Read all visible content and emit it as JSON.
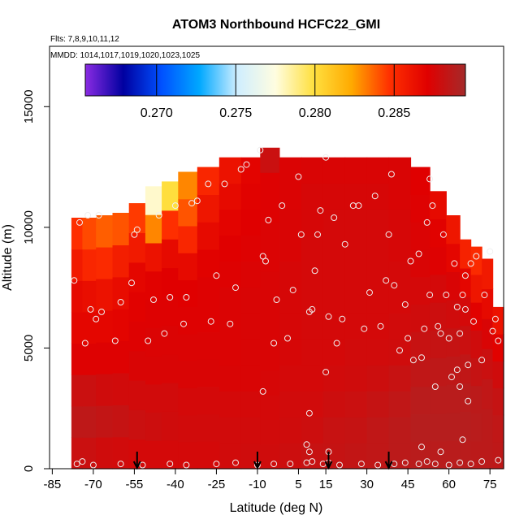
{
  "chart_data": {
    "type": "heatmap",
    "title": "ATOM3 Northbound HCFC22_GMI",
    "flights_label": "Flts: 7,8,9,10,11,12",
    "dates_label": "MMDD: 1014,1017,1019,1020,1023,1025",
    "xlabel": "Latitude (deg N)",
    "ylabel": "Altitude (m)",
    "xlim": [
      -86,
      80
    ],
    "ylim": [
      0,
      17500
    ],
    "x_ticks": [
      -85,
      -70,
      -55,
      -40,
      -25,
      -10,
      5,
      15,
      30,
      45,
      60,
      75
    ],
    "x_tick_labels": [
      "-85",
      "-70",
      "-55",
      "-40",
      "-25",
      "-10",
      "5",
      "15",
      "30",
      "45",
      "60",
      "75"
    ],
    "y_ticks": [
      0,
      5000,
      10000,
      15000
    ],
    "y_tick_labels": [
      "0",
      "5000",
      "10000",
      "15000"
    ],
    "colorbar": {
      "range": [
        0.2655,
        0.2895
      ],
      "ticks": [
        0.27,
        0.275,
        0.28,
        0.285
      ],
      "tick_labels": [
        "0.270",
        "0.275",
        "0.280",
        "0.285"
      ],
      "colors": [
        "#8a2be2",
        "#0000a0",
        "#0050ff",
        "#00a8ff",
        "#cfeeff",
        "#fffde0",
        "#ffe040",
        "#ffaa00",
        "#ff3000",
        "#e00000",
        "#a52a2a"
      ]
    },
    "arrows_latitude": [
      -54,
      -10,
      16,
      38
    ],
    "field_columns": [
      {
        "lat": -76,
        "top": 10400,
        "values": [
          0.288,
          0.2885,
          0.288,
          0.2872,
          0.2868,
          0.2866,
          0.2858,
          0.2848
        ]
      },
      {
        "lat": -72,
        "top": 10400,
        "values": [
          0.288,
          0.2885,
          0.288,
          0.2872,
          0.2868,
          0.2864,
          0.2852,
          0.2842
        ]
      },
      {
        "lat": -66,
        "top": 10500,
        "values": [
          0.2878,
          0.2883,
          0.2878,
          0.2872,
          0.2868,
          0.2862,
          0.285,
          0.2838
        ]
      },
      {
        "lat": -60,
        "top": 10600,
        "values": [
          0.2877,
          0.2882,
          0.2877,
          0.2872,
          0.2869,
          0.2865,
          0.2856,
          0.284
        ]
      },
      {
        "lat": -54,
        "top": 11000,
        "values": [
          0.2876,
          0.288,
          0.2877,
          0.2874,
          0.2872,
          0.287,
          0.2868,
          0.2858,
          0.2845
        ]
      },
      {
        "lat": -48,
        "top": 11700,
        "values": [
          0.2876,
          0.2879,
          0.2877,
          0.2874,
          0.2873,
          0.2872,
          0.287,
          0.2862,
          0.283,
          0.2778
        ]
      },
      {
        "lat": -42,
        "top": 11900,
        "values": [
          0.2876,
          0.2878,
          0.2877,
          0.2874,
          0.2873,
          0.2872,
          0.2871,
          0.2866,
          0.2848,
          0.28
        ]
      },
      {
        "lat": -36,
        "top": 12300,
        "values": [
          0.2876,
          0.2877,
          0.2876,
          0.2874,
          0.2873,
          0.2872,
          0.2871,
          0.2866,
          0.2852,
          0.284,
          0.283
        ]
      },
      {
        "lat": -28,
        "top": 12500,
        "values": [
          0.2876,
          0.2877,
          0.2876,
          0.2874,
          0.2873,
          0.2872,
          0.2872,
          0.287,
          0.2866,
          0.286,
          0.2852
        ]
      },
      {
        "lat": -20,
        "top": 12900,
        "values": [
          0.2877,
          0.2877,
          0.2876,
          0.2874,
          0.2873,
          0.2873,
          0.2873,
          0.2872,
          0.2871,
          0.2869,
          0.2866,
          0.2862
        ]
      },
      {
        "lat": -12,
        "top": 12900,
        "values": [
          0.2878,
          0.2877,
          0.2876,
          0.2874,
          0.2874,
          0.2874,
          0.2874,
          0.2873,
          0.2872,
          0.2871,
          0.287,
          0.2869
        ]
      },
      {
        "lat": -6,
        "top": 13300,
        "values": [
          0.2878,
          0.2877,
          0.2876,
          0.2875,
          0.2874,
          0.2874,
          0.2874,
          0.2874,
          0.2873,
          0.2873,
          0.2872,
          0.2872,
          0.288
        ]
      },
      {
        "lat": 2,
        "top": 12900,
        "values": [
          0.2879,
          0.2878,
          0.2877,
          0.2876,
          0.2875,
          0.2875,
          0.2875,
          0.2875,
          0.2874,
          0.2874,
          0.2873,
          0.2873
        ]
      },
      {
        "lat": 10,
        "top": 12900,
        "values": [
          0.2881,
          0.2879,
          0.2877,
          0.2876,
          0.2876,
          0.2876,
          0.2876,
          0.2876,
          0.2876,
          0.2875,
          0.2875,
          0.2874
        ]
      },
      {
        "lat": 18,
        "top": 12900,
        "values": [
          0.2882,
          0.2881,
          0.2879,
          0.2877,
          0.2876,
          0.2876,
          0.2876,
          0.2876,
          0.2876,
          0.2876,
          0.2875,
          0.2874
        ]
      },
      {
        "lat": 26,
        "top": 12900,
        "values": [
          0.2883,
          0.2882,
          0.288,
          0.2878,
          0.2877,
          0.2876,
          0.2876,
          0.2876,
          0.2876,
          0.2876,
          0.2875,
          0.2874
        ]
      },
      {
        "lat": 34,
        "top": 12900,
        "values": [
          0.2884,
          0.2884,
          0.2882,
          0.2879,
          0.2877,
          0.2876,
          0.2876,
          0.2876,
          0.2876,
          0.2876,
          0.2875,
          0.2874
        ]
      },
      {
        "lat": 42,
        "top": 12900,
        "values": [
          0.2886,
          0.2886,
          0.2884,
          0.2881,
          0.2878,
          0.2877,
          0.2876,
          0.2876,
          0.2875,
          0.2875,
          0.2874,
          0.2874
        ]
      },
      {
        "lat": 50,
        "top": 12500,
        "values": [
          0.2887,
          0.2888,
          0.2887,
          0.2884,
          0.2881,
          0.2878,
          0.2876,
          0.2874,
          0.2873,
          0.2872,
          0.2871
        ]
      },
      {
        "lat": 56,
        "top": 11500,
        "values": [
          0.2887,
          0.2888,
          0.2887,
          0.2885,
          0.2882,
          0.2879,
          0.2876,
          0.2872,
          0.287,
          0.2866
        ]
      },
      {
        "lat": 62,
        "top": 10500,
        "values": [
          0.2887,
          0.2888,
          0.2887,
          0.2885,
          0.2882,
          0.2878,
          0.2874,
          0.2868,
          0.286
        ]
      },
      {
        "lat": 66,
        "top": 9500,
        "values": [
          0.2887,
          0.2888,
          0.2887,
          0.2884,
          0.288,
          0.2876,
          0.2868,
          0.2854
        ]
      },
      {
        "lat": 70,
        "top": 9200,
        "values": [
          0.2886,
          0.2887,
          0.2886,
          0.2882,
          0.2878,
          0.287,
          0.286,
          0.285
        ]
      },
      {
        "lat": 74,
        "top": 8700,
        "values": [
          0.2886,
          0.2886,
          0.2884,
          0.288,
          0.2874,
          0.2866,
          0.2858
        ]
      },
      {
        "lat": 78,
        "top": 6700,
        "values": [
          0.2885,
          0.2884,
          0.2882,
          0.2878,
          0.287,
          0.2862
        ]
      }
    ],
    "observations": [
      {
        "lat": -77,
        "alt": 7800
      },
      {
        "lat": -75,
        "alt": 10200
      },
      {
        "lat": -73,
        "alt": 5200
      },
      {
        "lat": -72,
        "alt": 10500
      },
      {
        "lat": -71,
        "alt": 6600
      },
      {
        "lat": -69,
        "alt": 6200
      },
      {
        "lat": -68,
        "alt": 10500
      },
      {
        "lat": -67,
        "alt": 6500
      },
      {
        "lat": -62,
        "alt": 5300
      },
      {
        "lat": -60,
        "alt": 6900
      },
      {
        "lat": -56,
        "alt": 7700
      },
      {
        "lat": -55,
        "alt": 9700
      },
      {
        "lat": -54,
        "alt": 9900
      },
      {
        "lat": -50,
        "alt": 5300
      },
      {
        "lat": -48,
        "alt": 7000
      },
      {
        "lat": -46,
        "alt": 10500
      },
      {
        "lat": -44,
        "alt": 5600
      },
      {
        "lat": -42,
        "alt": 7100
      },
      {
        "lat": -40,
        "alt": 10900
      },
      {
        "lat": -37,
        "alt": 6000
      },
      {
        "lat": -36,
        "alt": 7100
      },
      {
        "lat": -34,
        "alt": 11000
      },
      {
        "lat": -32,
        "alt": 11100
      },
      {
        "lat": -28,
        "alt": 11800
      },
      {
        "lat": -27,
        "alt": 6100
      },
      {
        "lat": -25,
        "alt": 8000
      },
      {
        "lat": -22,
        "alt": 11800
      },
      {
        "lat": -20,
        "alt": 6000
      },
      {
        "lat": -18,
        "alt": 7500
      },
      {
        "lat": -16,
        "alt": 12400
      },
      {
        "lat": -14,
        "alt": 12600
      },
      {
        "lat": -9,
        "alt": 13200
      },
      {
        "lat": -8,
        "alt": 8800
      },
      {
        "lat": -7,
        "alt": 8600
      },
      {
        "lat": -6,
        "alt": 10300
      },
      {
        "lat": -4,
        "alt": 5200
      },
      {
        "lat": -3,
        "alt": 7000
      },
      {
        "lat": -1,
        "alt": 10900
      },
      {
        "lat": 1,
        "alt": 5400
      },
      {
        "lat": 3,
        "alt": 7400
      },
      {
        "lat": 5,
        "alt": 12100
      },
      {
        "lat": 6,
        "alt": 9700
      },
      {
        "lat": 9,
        "alt": 6500
      },
      {
        "lat": 10,
        "alt": 6600
      },
      {
        "lat": 11,
        "alt": 8200
      },
      {
        "lat": 12,
        "alt": 9700
      },
      {
        "lat": 13,
        "alt": 10700
      },
      {
        "lat": 15,
        "alt": 12900
      },
      {
        "lat": 16,
        "alt": 6300
      },
      {
        "lat": 15,
        "alt": 4000
      },
      {
        "lat": 18,
        "alt": 10400
      },
      {
        "lat": 19,
        "alt": 5200
      },
      {
        "lat": 21,
        "alt": 6200
      },
      {
        "lat": 22,
        "alt": 9300
      },
      {
        "lat": 25,
        "alt": 10900
      },
      {
        "lat": 27,
        "alt": 10900
      },
      {
        "lat": 29,
        "alt": 5800
      },
      {
        "lat": 31,
        "alt": 7300
      },
      {
        "lat": 33,
        "alt": 11300
      },
      {
        "lat": 35,
        "alt": 5900
      },
      {
        "lat": 37,
        "alt": 7800
      },
      {
        "lat": 38,
        "alt": 9700
      },
      {
        "lat": 39,
        "alt": 12200
      },
      {
        "lat": 40,
        "alt": 7600
      },
      {
        "lat": 42,
        "alt": 4900
      },
      {
        "lat": 44,
        "alt": 6800
      },
      {
        "lat": 45,
        "alt": 5400
      },
      {
        "lat": 46,
        "alt": 8600
      },
      {
        "lat": 47,
        "alt": 4500
      },
      {
        "lat": 49,
        "alt": 8900
      },
      {
        "lat": 50,
        "alt": 4600
      },
      {
        "lat": 51,
        "alt": 5800
      },
      {
        "lat": 52,
        "alt": 10200
      },
      {
        "lat": 53,
        "alt": 12000
      },
      {
        "lat": 53,
        "alt": 7200
      },
      {
        "lat": 54,
        "alt": 10900
      },
      {
        "lat": 55,
        "alt": 3400
      },
      {
        "lat": 56,
        "alt": 5900
      },
      {
        "lat": 57,
        "alt": 5600
      },
      {
        "lat": 58,
        "alt": 9700
      },
      {
        "lat": 59,
        "alt": 7200
      },
      {
        "lat": 60,
        "alt": 5400
      },
      {
        "lat": 61,
        "alt": 3800
      },
      {
        "lat": 62,
        "alt": 8500
      },
      {
        "lat": 63,
        "alt": 6700
      },
      {
        "lat": 63,
        "alt": 4100
      },
      {
        "lat": 64,
        "alt": 3400
      },
      {
        "lat": 64,
        "alt": 5600
      },
      {
        "lat": 65,
        "alt": 7200
      },
      {
        "lat": 66,
        "alt": 8000
      },
      {
        "lat": 66,
        "alt": 6600
      },
      {
        "lat": 67,
        "alt": 4300
      },
      {
        "lat": 67,
        "alt": 2800
      },
      {
        "lat": 68,
        "alt": 8500
      },
      {
        "lat": 69,
        "alt": 6100
      },
      {
        "lat": 70,
        "alt": 8800
      },
      {
        "lat": 72,
        "alt": 4500
      },
      {
        "lat": 73,
        "alt": 7200
      },
      {
        "lat": 75,
        "alt": 9000
      },
      {
        "lat": 76,
        "alt": 5700
      },
      {
        "lat": 77,
        "alt": 6200
      },
      {
        "lat": 78,
        "alt": 5300
      },
      {
        "lat": -8,
        "alt": 3200
      },
      {
        "lat": 9,
        "alt": 2300
      },
      {
        "lat": 65,
        "alt": 1200
      },
      {
        "lat": 8,
        "alt": 1000
      },
      {
        "lat": 16,
        "alt": 700
      },
      {
        "lat": 9,
        "alt": 700
      },
      {
        "lat": 50,
        "alt": 900
      },
      {
        "lat": 57,
        "alt": 700
      },
      {
        "lat": -76,
        "alt": 200
      },
      {
        "lat": -74,
        "alt": 300
      },
      {
        "lat": -70,
        "alt": 150
      },
      {
        "lat": -60,
        "alt": 200
      },
      {
        "lat": -52,
        "alt": 150
      },
      {
        "lat": -42,
        "alt": 200
      },
      {
        "lat": -36,
        "alt": 150
      },
      {
        "lat": -25,
        "alt": 200
      },
      {
        "lat": -18,
        "alt": 250
      },
      {
        "lat": -10,
        "alt": 150
      },
      {
        "lat": -4,
        "alt": 200
      },
      {
        "lat": 2,
        "alt": 200
      },
      {
        "lat": 8,
        "alt": 250
      },
      {
        "lat": 10,
        "alt": 300
      },
      {
        "lat": 14,
        "alt": 200
      },
      {
        "lat": 16,
        "alt": 250
      },
      {
        "lat": 20,
        "alt": 150
      },
      {
        "lat": 28,
        "alt": 200
      },
      {
        "lat": 34,
        "alt": 150
      },
      {
        "lat": 40,
        "alt": 200
      },
      {
        "lat": 44,
        "alt": 250
      },
      {
        "lat": 49,
        "alt": 200
      },
      {
        "lat": 52,
        "alt": 300
      },
      {
        "lat": 55,
        "alt": 200
      },
      {
        "lat": 60,
        "alt": 150
      },
      {
        "lat": 64,
        "alt": 250
      },
      {
        "lat": 68,
        "alt": 200
      },
      {
        "lat": 72,
        "alt": 300
      },
      {
        "lat": 78,
        "alt": 350
      }
    ]
  }
}
